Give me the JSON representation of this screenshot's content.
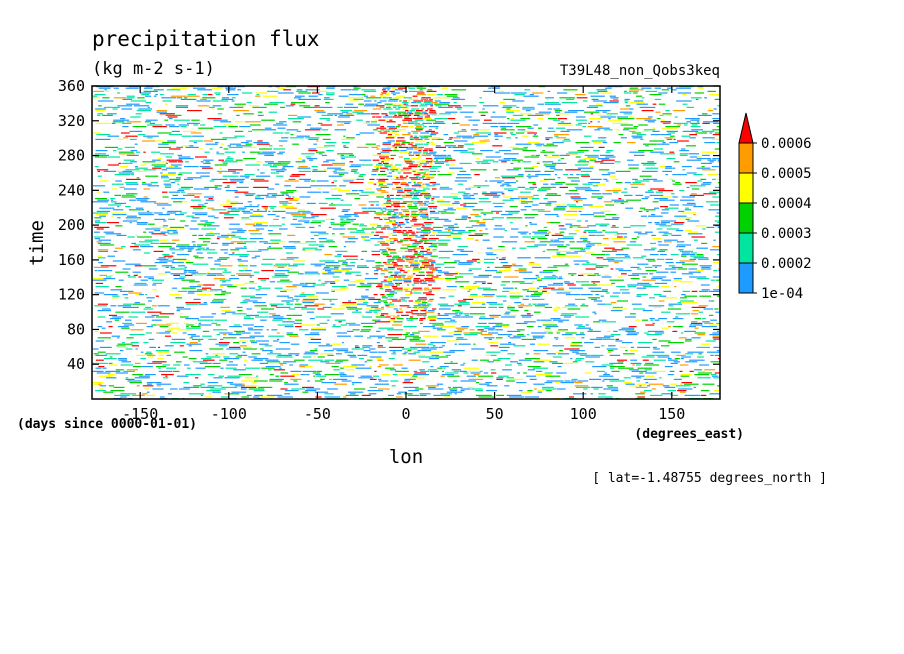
{
  "chart_data": {
    "type": "heatmap",
    "title": "precipitation flux",
    "units": "(kg m-2 s-1)",
    "run_label": "T39L48_non_Qobs3keq",
    "xlabel": "lon",
    "xunits": "(degrees_east)",
    "ylabel": "time",
    "yunits": "(days since 0000-01-01)",
    "xlim": [
      -177.2,
      177.2
    ],
    "ylim": [
      0,
      360
    ],
    "xticks": [
      -150,
      -100,
      -50,
      0,
      50,
      100,
      150
    ],
    "xtick_labels": [
      "-150",
      "-100",
      "-50",
      "0",
      "50",
      "100",
      "150"
    ],
    "yticks": [
      40,
      80,
      120,
      160,
      200,
      240,
      280,
      320,
      360
    ],
    "ytick_labels": [
      "40",
      "80",
      "120",
      "160",
      "200",
      "240",
      "280",
      "320",
      "360"
    ],
    "slice_note": "[ lat=-1.48755 degrees_north ]",
    "grid": false,
    "legend_placement": "right",
    "colorbar": {
      "levels": [
        0.0001,
        0.0002,
        0.0003,
        0.0004,
        0.0005,
        0.0006
      ],
      "labels": [
        "1e-04",
        "0.0002",
        "0.0003",
        "0.0004",
        "0.0005",
        "0.0006"
      ],
      "colors": [
        "#1e9bff",
        "#00e6a0",
        "#00d200",
        "#ffff00",
        "#ff9c00",
        "#ff0000"
      ],
      "extend": "max"
    },
    "pattern": {
      "description_free": true,
      "enhanced_band_lon": [
        -20,
        15
      ],
      "enhanced_band_time": [
        90,
        360
      ]
    }
  }
}
